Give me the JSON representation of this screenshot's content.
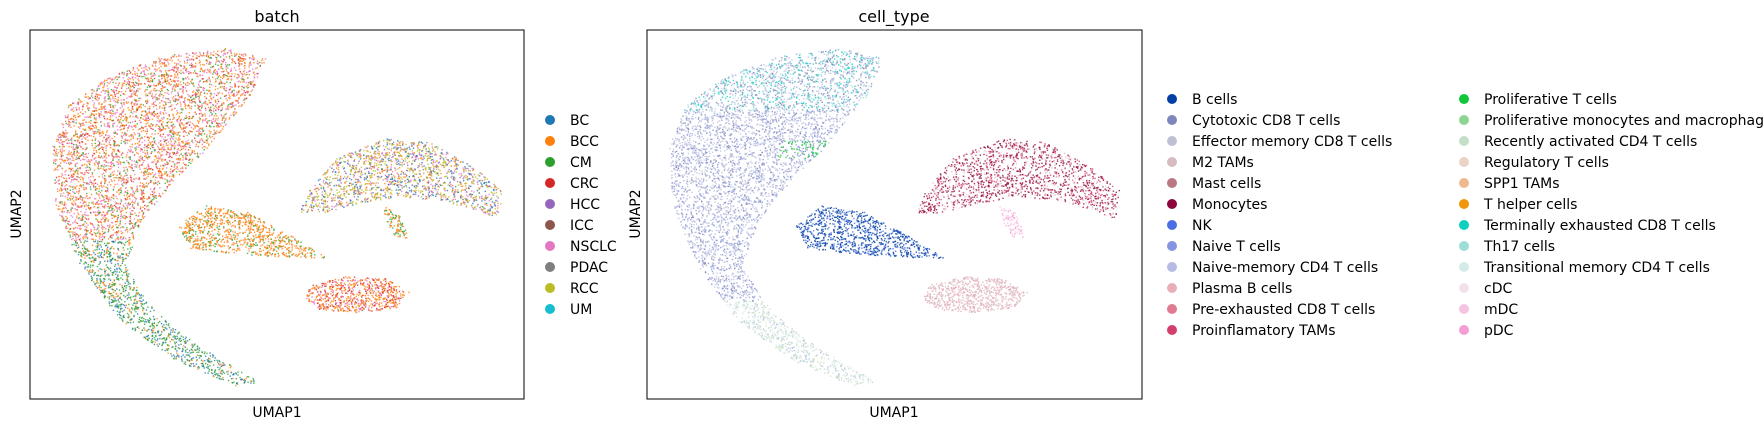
{
  "chart_data": [
    {
      "type": "scatter",
      "title": "batch",
      "xlabel": "UMAP1",
      "ylabel": "UMAP2",
      "grid": false,
      "legend_position": "right",
      "legend": [
        {
          "name": "BC",
          "color": "#1f77b4"
        },
        {
          "name": "BCC",
          "color": "#ff7f0e"
        },
        {
          "name": "CM",
          "color": "#2ca02c"
        },
        {
          "name": "CRC",
          "color": "#d62728"
        },
        {
          "name": "HCC",
          "color": "#9467bd"
        },
        {
          "name": "ICC",
          "color": "#8c564b"
        },
        {
          "name": "NSCLC",
          "color": "#e377c2"
        },
        {
          "name": "PDAC",
          "color": "#7f7f7f"
        },
        {
          "name": "RCC",
          "color": "#bcbd22"
        },
        {
          "name": "UM",
          "color": "#17becf"
        }
      ]
    },
    {
      "type": "scatter",
      "title": "cell_type",
      "xlabel": "UMAP1",
      "ylabel": "UMAP2",
      "grid": false,
      "legend_position": "right",
      "legend": [
        {
          "name": "B cells",
          "color": "#023fa5"
        },
        {
          "name": "Cytotoxic CD8 T cells",
          "color": "#7d87b9"
        },
        {
          "name": "Effector memory CD8 T cells",
          "color": "#bec1d4"
        },
        {
          "name": "M2 TAMs",
          "color": "#d6bcc0"
        },
        {
          "name": "Mast cells",
          "color": "#bb7784"
        },
        {
          "name": "Monocytes",
          "color": "#8e063b"
        },
        {
          "name": "NK",
          "color": "#4a6fe3"
        },
        {
          "name": "Naive T cells",
          "color": "#8595e1"
        },
        {
          "name": "Naive-memory CD4 T cells",
          "color": "#b5bbe3"
        },
        {
          "name": "Plasma B cells",
          "color": "#e6afb9"
        },
        {
          "name": "Pre-exhausted CD8 T cells",
          "color": "#e07b91"
        },
        {
          "name": "Proinflamatory TAMs",
          "color": "#d33f6a"
        },
        {
          "name": "Proliferative T cells",
          "color": "#11c638"
        },
        {
          "name": "Proliferative monocytes and macrophages",
          "color": "#8dd593"
        },
        {
          "name": "Recently activated CD4 T cells",
          "color": "#c6dec7"
        },
        {
          "name": "Regulatory T cells",
          "color": "#ead3c6"
        },
        {
          "name": "SPP1 TAMs",
          "color": "#f0b98d"
        },
        {
          "name": "T helper cells",
          "color": "#ef9708"
        },
        {
          "name": "Terminally exhausted CD8 T cells",
          "color": "#0fcfc0"
        },
        {
          "name": "Th17 cells",
          "color": "#9cded6"
        },
        {
          "name": "Transitional memory CD4 T cells",
          "color": "#d5eae7"
        },
        {
          "name": "cDC",
          "color": "#f3e1eb"
        },
        {
          "name": "mDC",
          "color": "#f6c4e1"
        },
        {
          "name": "pDC",
          "color": "#f79cd4"
        }
      ]
    }
  ]
}
